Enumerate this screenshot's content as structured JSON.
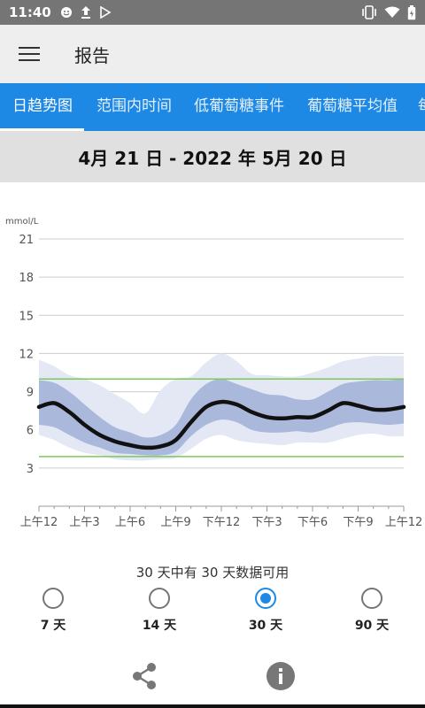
{
  "status_bar": {
    "time": "11:40",
    "left_icons": [
      "emoji-icon",
      "upload-icon",
      "play-store-icon"
    ],
    "right_icons": [
      "vibrate-icon",
      "wifi-icon",
      "battery-icon"
    ]
  },
  "app_bar": {
    "title": "报告",
    "menu_icon": "hamburger-menu-icon"
  },
  "tabs": [
    {
      "label": "日趋势图",
      "active": true
    },
    {
      "label": "范围内时间",
      "active": false
    },
    {
      "label": "低葡萄糖事件",
      "active": false
    },
    {
      "label": "葡萄糖平均值",
      "active": false
    },
    {
      "label": "每",
      "active": false
    }
  ],
  "date_range": "4月 21 日 - 2022 年 5月 20 日",
  "chart_data": {
    "type": "area",
    "ylabel": "mmol/L",
    "ylim": [
      0,
      21
    ],
    "yticks": [
      3,
      6,
      9,
      12,
      15,
      18,
      21
    ],
    "xlim": [
      0,
      24
    ],
    "xticks": [
      {
        "value": 0,
        "label": "上午12"
      },
      {
        "value": 3,
        "label": "上午3"
      },
      {
        "value": 6,
        "label": "上午6"
      },
      {
        "value": 9,
        "label": "上午9"
      },
      {
        "value": 12,
        "label": "下午12"
      },
      {
        "value": 15,
        "label": "下午3"
      },
      {
        "value": 18,
        "label": "下午6"
      },
      {
        "value": 21,
        "label": "下午9"
      },
      {
        "value": 24,
        "label": "上午12"
      }
    ],
    "target_range": [
      3.9,
      10.0
    ],
    "x": [
      0,
      1,
      2,
      3,
      4,
      5,
      6,
      7,
      8,
      9,
      10,
      11,
      12,
      13,
      14,
      15,
      16,
      17,
      18,
      19,
      20,
      21,
      22,
      23,
      24
    ],
    "series": [
      {
        "values": [
          7.8,
          8.1,
          7.4,
          6.4,
          5.6,
          5.1,
          4.8,
          4.6,
          4.7,
          5.2,
          6.6,
          7.8,
          8.2,
          8.0,
          7.4,
          7.0,
          6.9,
          7.0,
          7.0,
          7.5,
          8.1,
          7.9,
          7.6,
          7.6,
          7.8
        ]
      },
      {
        "values": [
          6.4,
          6.2,
          5.6,
          5.0,
          4.6,
          4.2,
          4.1,
          4.0,
          4.0,
          4.3,
          5.5,
          6.4,
          6.8,
          6.6,
          6.0,
          5.8,
          5.8,
          5.9,
          5.8,
          6.1,
          6.5,
          6.6,
          6.5,
          6.4,
          6.5
        ]
      },
      {
        "values": [
          9.9,
          9.7,
          9.0,
          8.0,
          7.0,
          6.2,
          5.8,
          5.4,
          5.6,
          6.4,
          8.4,
          9.6,
          10.0,
          9.6,
          9.2,
          8.8,
          8.7,
          8.4,
          8.4,
          9.0,
          9.6,
          9.8,
          9.9,
          9.9,
          10.0
        ]
      },
      {
        "values": [
          5.6,
          5.2,
          4.6,
          4.2,
          4.0,
          3.7,
          3.6,
          3.6,
          3.7,
          3.8,
          4.5,
          5.3,
          5.6,
          5.2,
          5.0,
          4.9,
          4.8,
          5.0,
          5.0,
          5.0,
          5.3,
          5.6,
          5.7,
          5.5,
          5.5
        ]
      },
      {
        "values": [
          11.5,
          11.0,
          10.3,
          10.0,
          9.5,
          8.8,
          8.1,
          7.3,
          9.1,
          10.0,
          10.2,
          11.3,
          12.0,
          11.4,
          10.4,
          10.3,
          10.2,
          10.2,
          10.5,
          10.9,
          11.4,
          11.6,
          11.8,
          11.8,
          11.8
        ]
      }
    ],
    "colors": {
      "outer_band": "#e4e8f4",
      "inner_band": "#aab8dc",
      "median_line": "#111111",
      "target_line": "#7cc85a",
      "grid": "#cccccc"
    }
  },
  "availability": "30 天中有 30 天数据可用",
  "range_options": [
    {
      "label": "7 天",
      "selected": false
    },
    {
      "label": "14 天",
      "selected": false
    },
    {
      "label": "30 天",
      "selected": true
    },
    {
      "label": "90 天",
      "selected": false
    }
  ],
  "actions": {
    "share_icon": "share-icon",
    "info_icon": "info-icon"
  }
}
